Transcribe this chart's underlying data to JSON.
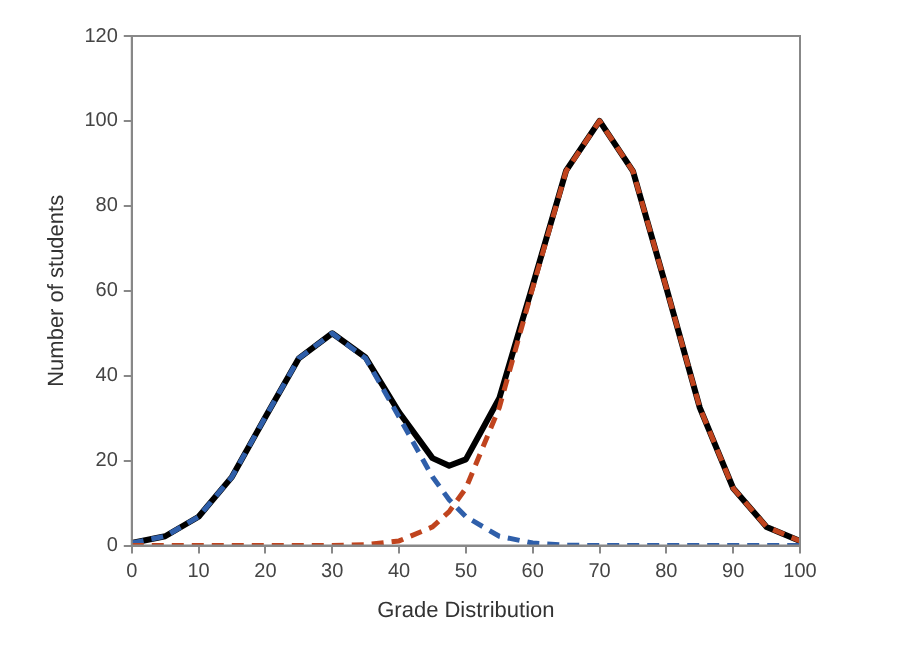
{
  "chart_data": {
    "type": "line",
    "xlabel": "Grade Distribution",
    "ylabel": "Number of students",
    "x": [
      0,
      5,
      10,
      15,
      20,
      25,
      30,
      35,
      40,
      45,
      47.5,
      50,
      55,
      60,
      65,
      70,
      75,
      80,
      85,
      90,
      95,
      100
    ],
    "xlim": [
      0,
      100
    ],
    "xticks": [
      0,
      10,
      20,
      30,
      40,
      50,
      60,
      70,
      80,
      90,
      100
    ],
    "ylim": [
      0,
      120
    ],
    "yticks": [
      0,
      20,
      40,
      60,
      80,
      100,
      120
    ],
    "grid": false,
    "legend": false,
    "marker": "none",
    "series": [
      {
        "color": "#000000",
        "line_style": "solid",
        "values": [
          0.6,
          2.2,
          6.8,
          16.2,
          30.3,
          44.1,
          50,
          44.3,
          31.4,
          20.6,
          18.8,
          20.3,
          34.7,
          61.3,
          88.3,
          100,
          88.2,
          60.7,
          32.5,
          13.5,
          4.4,
          1.1
        ]
      },
      {
        "color": "#2f5faa",
        "line_style": "dashed",
        "values": [
          0.6,
          2.2,
          6.8,
          16.2,
          30.3,
          44.1,
          50,
          44.1,
          30.3,
          16.2,
          10.8,
          6.8,
          2.2,
          0.6,
          0.1,
          0,
          0,
          0,
          0,
          0,
          0,
          0
        ]
      },
      {
        "color": "#c0441e",
        "line_style": "dashed",
        "values": [
          0,
          0,
          0,
          0,
          0,
          0,
          0,
          0.2,
          1.1,
          4.4,
          8.0,
          13.5,
          32.5,
          60.7,
          88.2,
          100,
          88.2,
          60.7,
          32.5,
          13.5,
          4.4,
          1.1
        ]
      }
    ]
  }
}
